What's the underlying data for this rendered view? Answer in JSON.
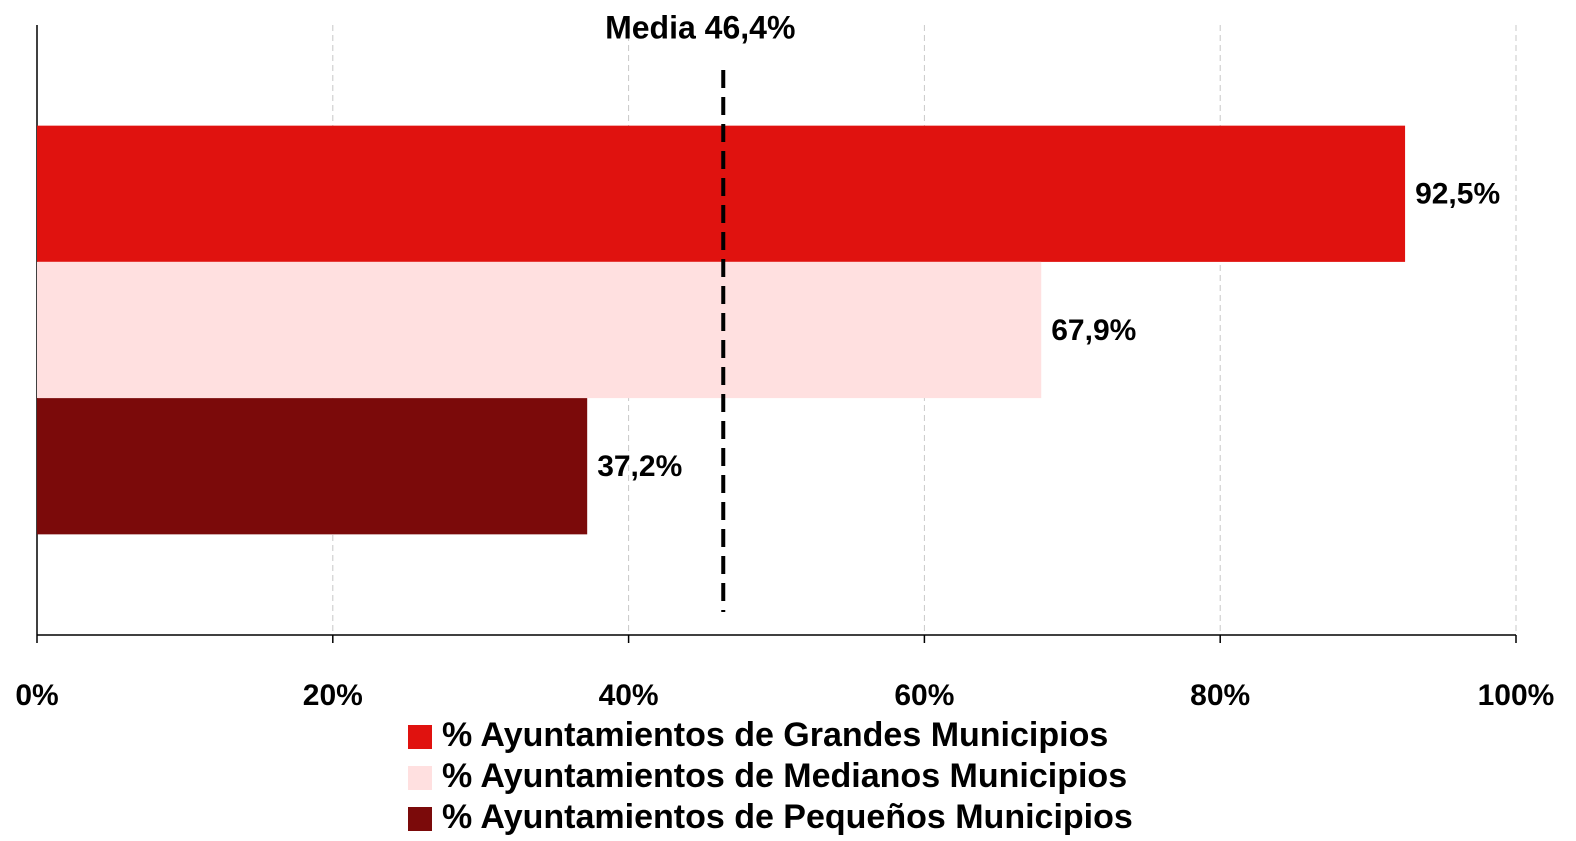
{
  "chart_data": {
    "type": "bar",
    "orientation": "horizontal",
    "categories": [
      null
    ],
    "series": [
      {
        "name": "% Ayuntamientos de Grandes Municipios",
        "color": "#e0120f",
        "values": [
          92.5
        ],
        "value_labels": [
          "92,5%"
        ]
      },
      {
        "name": "% Ayuntamientos de Medianos Municipios",
        "color": "#ffe0e0",
        "values": [
          67.9
        ],
        "value_labels": [
          "67,9%"
        ]
      },
      {
        "name": "% Ayuntamientos de Pequeños Municipios",
        "color": "#7b0a0a",
        "values": [
          37.2
        ],
        "value_labels": [
          "37,2%"
        ]
      }
    ],
    "xlim": [
      0,
      100
    ],
    "xticks": [
      {
        "value": 0,
        "label": "0%"
      },
      {
        "value": 20,
        "label": "20%"
      },
      {
        "value": 40,
        "label": "40%"
      },
      {
        "value": 60,
        "label": "60%"
      },
      {
        "value": 80,
        "label": "80%"
      },
      {
        "value": 100,
        "label": "100%"
      }
    ],
    "grid": true,
    "reference_line": {
      "text": "Media 46,4%",
      "value": 46.4
    },
    "legend": "bottom"
  }
}
